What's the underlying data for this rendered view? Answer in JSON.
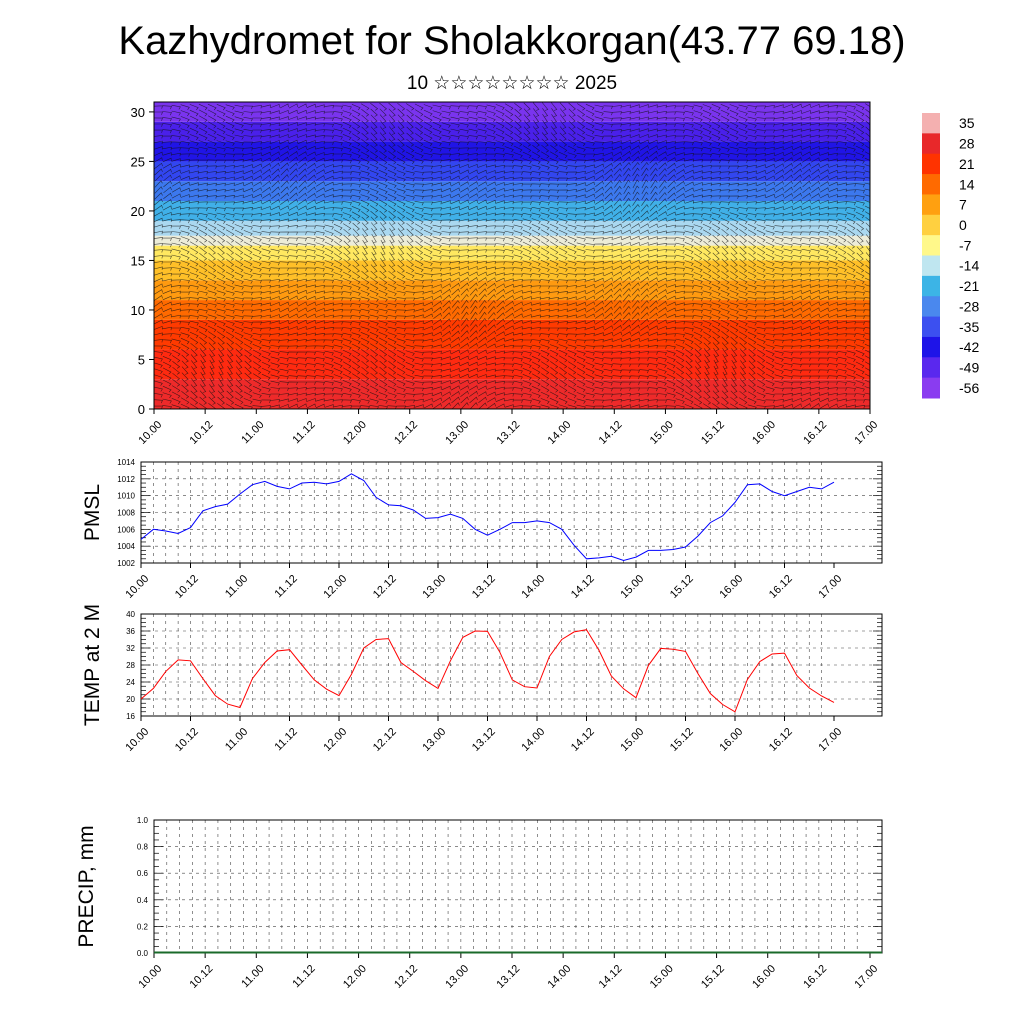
{
  "header": {
    "title": "Kazhydromet for Sholakkorgan(43.77 69.18)",
    "subtitle": "10 ☆☆☆☆☆☆☆☆ 2025"
  },
  "chart_data": [
    {
      "type": "heatmap",
      "description": "Vertical cross-section: temperature colour shading with wind barbs",
      "x_tick_labels": [
        "10.00",
        "10.12",
        "11.00",
        "11.12",
        "12.00",
        "12.12",
        "13.00",
        "13.12",
        "14.00",
        "14.12",
        "15.00",
        "15.12",
        "16.00",
        "16.12",
        "17.00"
      ],
      "ylim": [
        0,
        31
      ],
      "y_ticks": [
        0,
        5,
        10,
        15,
        20,
        25,
        30
      ],
      "colorbar": {
        "labels": [
          "35",
          "28",
          "21",
          "14",
          "7",
          "0",
          "-7",
          "-14",
          "-21",
          "-28",
          "-35",
          "-42",
          "-49",
          "-56"
        ],
        "colors": [
          "#f4b0b0",
          "#e8282a",
          "#ff3300",
          "#ff6a00",
          "#ffa010",
          "#ffd040",
          "#fff88a",
          "#bfe6f0",
          "#3cb4e6",
          "#4a88ee",
          "#3c50f0",
          "#1e14e8",
          "#5a28ee",
          "#8a3cf0"
        ]
      },
      "layers": [
        {
          "y0": 0,
          "y1": 3,
          "color": "#ee2a2a"
        },
        {
          "y0": 3,
          "y1": 6,
          "color": "#ff2a10"
        },
        {
          "y0": 6,
          "y1": 9,
          "color": "#ff3a00"
        },
        {
          "y0": 9,
          "y1": 11,
          "color": "#ff6a00"
        },
        {
          "y0": 11,
          "y1": 13,
          "color": "#ff9a10"
        },
        {
          "y0": 13,
          "y1": 15,
          "color": "#ffc028"
        },
        {
          "y0": 15,
          "y1": 16.5,
          "color": "#ffe860"
        },
        {
          "y0": 16.5,
          "y1": 17.5,
          "color": "#ececd8"
        },
        {
          "y0": 17.5,
          "y1": 19,
          "color": "#aad8f0"
        },
        {
          "y0": 19,
          "y1": 21,
          "color": "#40b0e8"
        },
        {
          "y0": 21,
          "y1": 23,
          "color": "#3c78ee"
        },
        {
          "y0": 23,
          "y1": 25,
          "color": "#3246f0"
        },
        {
          "y0": 25,
          "y1": 27,
          "color": "#2014e6"
        },
        {
          "y0": 27,
          "y1": 29,
          "color": "#4a20ea"
        },
        {
          "y0": 29,
          "y1": 31,
          "color": "#7a34ee"
        }
      ]
    },
    {
      "type": "line",
      "ylabel": "PMSL",
      "ylim": [
        1002,
        1014
      ],
      "y_ticks": [
        1002,
        1004,
        1006,
        1008,
        1010,
        1012,
        1014
      ],
      "x_tick_labels": [
        "10.00",
        "10.12",
        "11.00",
        "11.12",
        "12.00",
        "12.12",
        "13.00",
        "13.12",
        "14.00",
        "14.12",
        "15.00",
        "15.12",
        "16.00",
        "16.12",
        "17.00"
      ],
      "series": [
        {
          "color": "#0000ff",
          "x": [
            0,
            3,
            6,
            9,
            12,
            15,
            18,
            21,
            24,
            27,
            30,
            33,
            36,
            39,
            42,
            45,
            48,
            51,
            54,
            57,
            60,
            63,
            66,
            69,
            72,
            75,
            78,
            81,
            84,
            87,
            90,
            93,
            96,
            99,
            102,
            105,
            108,
            111,
            114,
            117,
            120,
            123,
            126,
            129,
            132,
            135,
            138,
            141,
            144,
            147,
            150,
            153,
            156,
            159,
            162,
            165,
            168
          ],
          "values": [
            1004.8,
            1006.0,
            1005.8,
            1005.5,
            1006.2,
            1008.2,
            1008.7,
            1009.0,
            1010.2,
            1011.3,
            1011.7,
            1011.1,
            1010.8,
            1011.5,
            1011.6,
            1011.4,
            1011.7,
            1012.6,
            1011.8,
            1009.8,
            1008.9,
            1008.8,
            1008.3,
            1007.3,
            1007.4,
            1007.8,
            1007.3,
            1006.0,
            1005.3,
            1006.0,
            1006.8,
            1006.8,
            1007.0,
            1006.8,
            1006.0,
            1004.1,
            1002.5,
            1002.6,
            1002.8,
            1002.3,
            1002.7,
            1003.5,
            1003.5,
            1003.6,
            1003.9,
            1005.2,
            1006.8,
            1007.6,
            1009.2,
            1011.3,
            1011.4,
            1010.5,
            1010.0,
            1010.5,
            1011.0,
            1010.8,
            1011.6
          ]
        }
      ]
    },
    {
      "type": "line",
      "ylabel": "TEMP at 2 M",
      "ylim": [
        16,
        40
      ],
      "y_ticks": [
        16,
        20,
        24,
        28,
        32,
        36,
        40
      ],
      "x_tick_labels": [
        "10.00",
        "10.12",
        "11.00",
        "11.12",
        "12.00",
        "12.12",
        "13.00",
        "13.12",
        "14.00",
        "14.12",
        "15.00",
        "15.12",
        "16.00",
        "16.12",
        "17.00"
      ],
      "series": [
        {
          "color": "#ff0000",
          "x": [
            0,
            3,
            6,
            9,
            12,
            15,
            18,
            21,
            24,
            27,
            30,
            33,
            36,
            39,
            42,
            45,
            48,
            51,
            54,
            57,
            60,
            63,
            66,
            69,
            72,
            75,
            78,
            81,
            84,
            87,
            90,
            93,
            96,
            99,
            102,
            105,
            108,
            111,
            114,
            117,
            120,
            123,
            126,
            129,
            132,
            135,
            138,
            141,
            144,
            147,
            150,
            153,
            156,
            159,
            162,
            165,
            168
          ],
          "values": [
            20.0,
            22.5,
            26.5,
            29.2,
            29.0,
            24.8,
            20.8,
            18.8,
            18.0,
            24.8,
            28.6,
            31.3,
            31.6,
            28.0,
            24.5,
            22.3,
            20.8,
            25.8,
            32.0,
            34.0,
            34.2,
            28.6,
            26.5,
            24.3,
            22.5,
            29.0,
            34.5,
            36.0,
            35.9,
            31.0,
            24.5,
            22.9,
            22.6,
            30.0,
            34.0,
            35.8,
            36.3,
            31.5,
            25.4,
            22.4,
            20.3,
            27.9,
            31.9,
            31.7,
            31.2,
            26.0,
            21.3,
            18.7,
            17.0,
            24.6,
            28.8,
            30.6,
            30.8,
            25.5,
            22.6,
            20.7,
            19.2
          ]
        }
      ]
    },
    {
      "type": "bar",
      "ylabel": "PRECIP, mm",
      "ylim": [
        0,
        1
      ],
      "y_tick_labels": [
        "0.0",
        "0.2",
        "0.4",
        "0.6",
        "0.8",
        "1.0"
      ],
      "x_tick_labels": [
        "10.00",
        "10.12",
        "11.00",
        "11.12",
        "12.00",
        "12.12",
        "13.00",
        "13.12",
        "14.00",
        "14.12",
        "15.00",
        "15.12",
        "16.00",
        "16.12",
        "17.00"
      ],
      "values": [
        0,
        0,
        0,
        0,
        0,
        0,
        0,
        0,
        0,
        0,
        0,
        0,
        0,
        0,
        0
      ]
    }
  ]
}
